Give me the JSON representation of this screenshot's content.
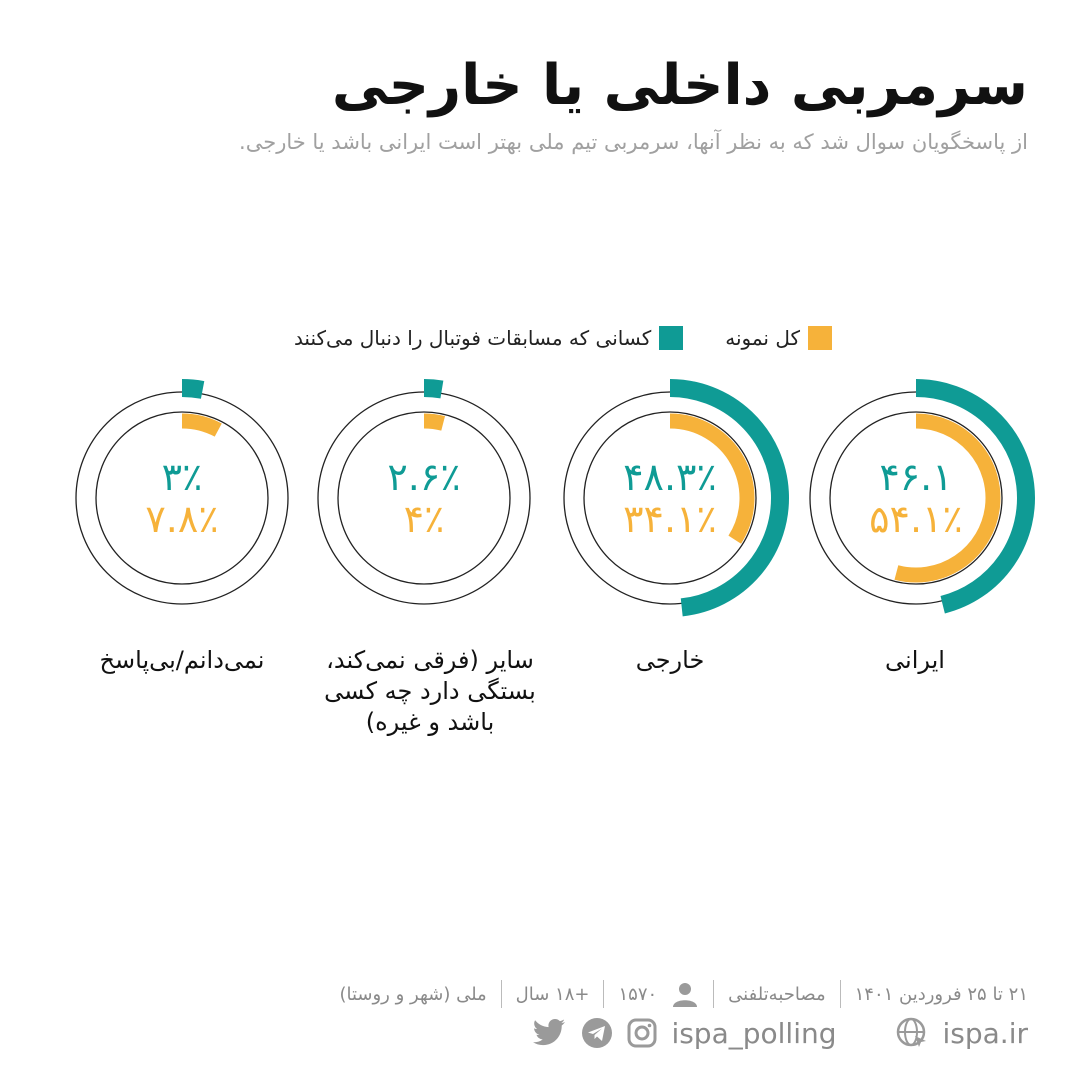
{
  "title": "سرمربی داخلی یا خارجی",
  "subtitle": "از پاسخگویان سوال شد که به نظر آنها، سرمربی تیم ملی بهتر است ایرانی باشد یا خارجی.",
  "colors": {
    "teal": "#0f9b95",
    "orange": "#f6b23a",
    "ring": "#222222"
  },
  "chart_data": {
    "type": "donut",
    "categories": [
      "ایرانی",
      "خارجی",
      "سایر (فرقی نمی‌کند، بستگی دارد چه کسی باشد و غیره)",
      "نمی‌دانم/بی‌پاسخ"
    ],
    "series": [
      {
        "name": "کسانی که مسابقات فوتبال را دنبال می‌کنند",
        "color": "#0f9b95",
        "values": [
          46.1,
          48.3,
          2.6,
          3
        ]
      },
      {
        "name": "کل نمونه",
        "color": "#f6b23a",
        "values": [
          54.1,
          34.1,
          4,
          7.8
        ]
      }
    ],
    "labels_teal": [
      "۴۶.۱",
      "۴۸.۳٪",
      "۲.۶٪",
      "۳٪"
    ],
    "labels_orange": [
      "۵۴.۱٪",
      "۳۴.۱٪",
      "۴٪",
      "۷.۸٪"
    ]
  },
  "legend": {
    "total": "کل نمونه",
    "followers": "کسانی که مسابقات فوتبال را دنبال می‌کنند"
  },
  "category_labels": {
    "c1": "ایرانی",
    "c2": "خارجی",
    "c3": "سایر (فرقی نمی‌کند، بستگی دارد چه کسی باشد و غیره)",
    "c4": "نمی‌دانم/بی‌پاسخ"
  },
  "footer": {
    "date": "۲۱ تا ۲۵ فروردین ۱۴۰۱",
    "method": "مصاحبه‌تلفنی",
    "sample": "۱۵۷۰",
    "age": "+۱۸ سال",
    "scope": "ملی (شهر و روستا)"
  },
  "social": {
    "handle": "ispa_polling",
    "site": "ispa.ir",
    "icons": [
      "twitter-icon",
      "telegram-icon",
      "instagram-icon",
      "globe-icon"
    ]
  }
}
